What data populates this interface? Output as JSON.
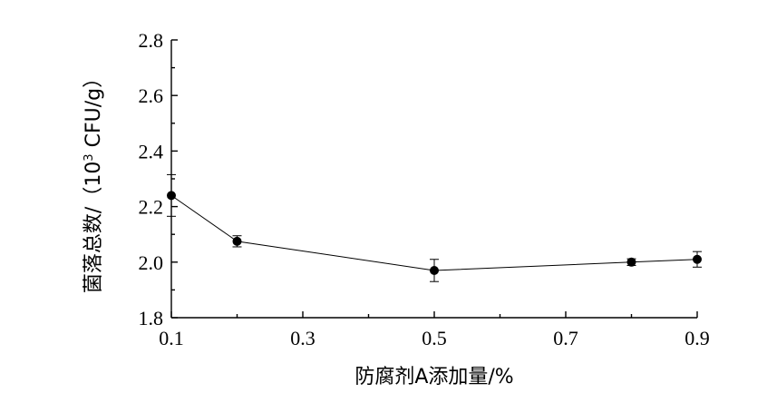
{
  "chart_data": {
    "type": "line",
    "xlabel": "防腐剂A添加量/%",
    "ylabel_main": "菌落总数/（10",
    "ylabel_sup": "3",
    "ylabel_tail": " CFU/g）",
    "xlim": [
      0.1,
      0.9
    ],
    "ylim": [
      1.8,
      2.8
    ],
    "x_ticks": [
      "0.1",
      "0.3",
      "0.5",
      "0.7",
      "0.9"
    ],
    "y_ticks": [
      "1.8",
      "2.0",
      "2.2",
      "2.4",
      "2.6",
      "2.8"
    ],
    "grid": false,
    "series": [
      {
        "x": [
          0.1,
          0.2,
          0.5,
          0.8,
          0.9
        ],
        "y": [
          2.24,
          2.075,
          1.97,
          2.0,
          2.01
        ],
        "yerr": [
          0.075,
          0.02,
          0.04,
          0.012,
          0.028
        ]
      }
    ]
  }
}
